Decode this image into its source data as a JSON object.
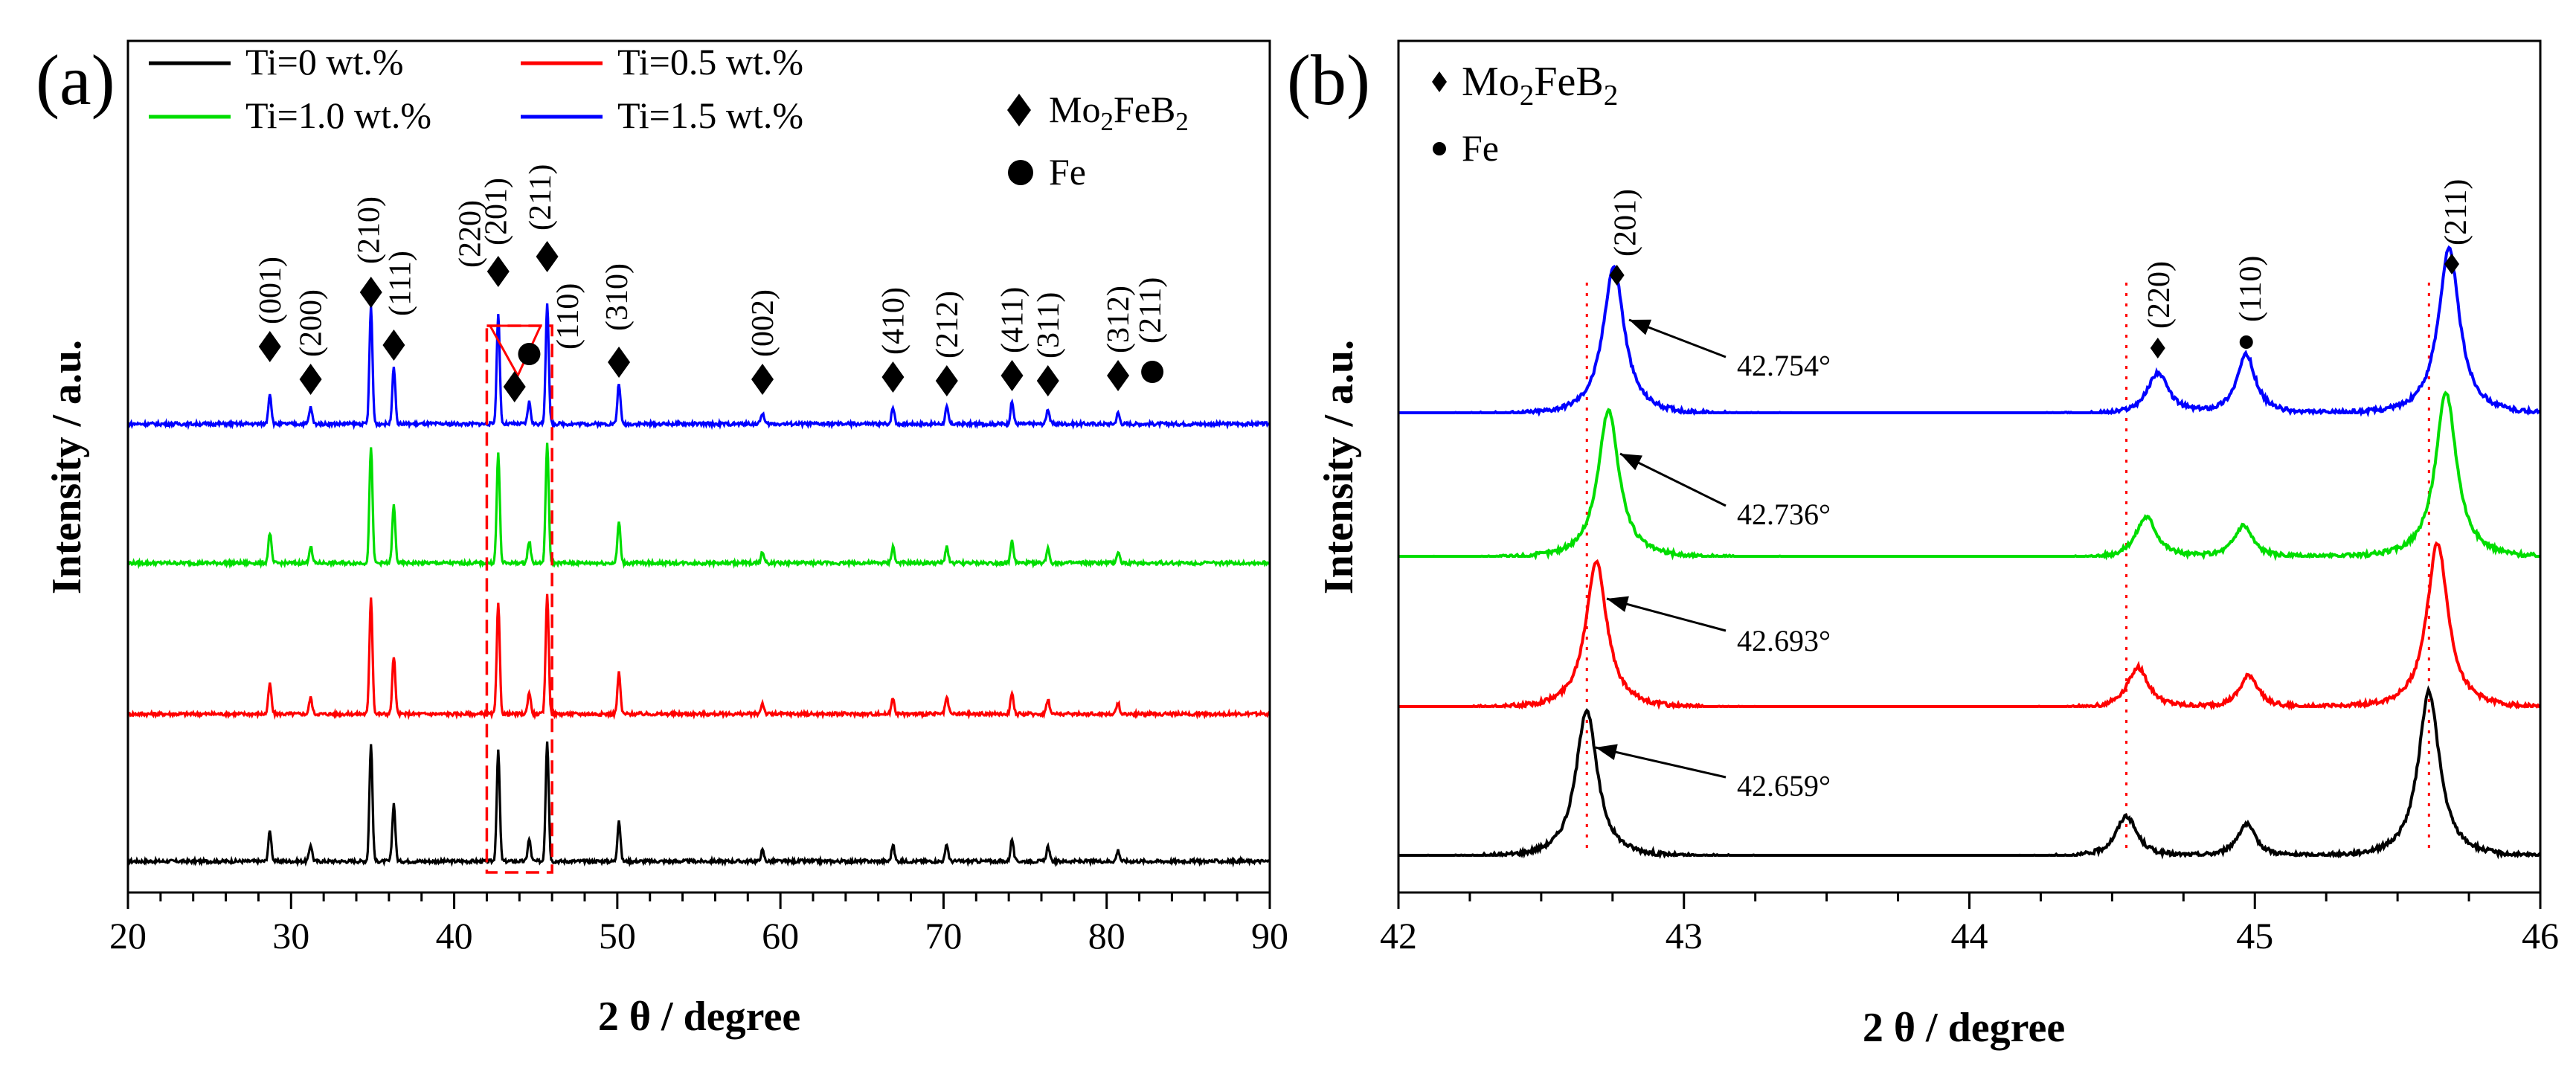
{
  "chart_data": [
    {
      "panel": "(a)",
      "type": "line",
      "xlabel": "2 θ  / degree",
      "ylabel": "Intensity / a.u.",
      "xlim": [
        20,
        90
      ],
      "xticks": [
        20,
        30,
        40,
        50,
        60,
        70,
        80,
        90
      ],
      "legend": [
        {
          "label": "Ti=0 wt.%",
          "color": "#000000"
        },
        {
          "label": "Ti=0.5 wt.%",
          "color": "#ff0000"
        },
        {
          "label": "Ti=1.0 wt.%",
          "color": "#00dd00"
        },
        {
          "label": "Ti=1.5 wt.%",
          "color": "#0000ff"
        }
      ],
      "phase_legend": [
        {
          "symbol": "diamond",
          "label": "Mo₂FeB₂"
        },
        {
          "symbol": "circle",
          "label": "Fe"
        }
      ],
      "series": [
        {
          "name": "Ti=0 wt.%",
          "color": "#000000",
          "offset": 0,
          "scale": 1.0
        },
        {
          "name": "Ti=0.5 wt.%",
          "color": "#ff0000",
          "offset": 1,
          "scale": 1.0
        },
        {
          "name": "Ti=1.0 wt.%",
          "color": "#00dd00",
          "offset": 2,
          "scale": 1.0
        },
        {
          "name": "Ti=1.5 wt.%",
          "color": "#0000ff",
          "offset": 3,
          "scale": 1.0
        }
      ],
      "peaks": [
        {
          "x": 28.7,
          "h": 0.22
        },
        {
          "x": 31.2,
          "h": 0.12
        },
        {
          "x": 34.9,
          "h": 0.85
        },
        {
          "x": 36.3,
          "h": 0.42
        },
        {
          "x": 42.7,
          "h": 0.8
        },
        {
          "x": 44.6,
          "h": 0.16
        },
        {
          "x": 45.7,
          "h": 0.88
        },
        {
          "x": 50.1,
          "h": 0.3
        },
        {
          "x": 58.9,
          "h": 0.08
        },
        {
          "x": 66.9,
          "h": 0.12
        },
        {
          "x": 70.2,
          "h": 0.12
        },
        {
          "x": 74.2,
          "h": 0.16
        },
        {
          "x": 76.4,
          "h": 0.11
        },
        {
          "x": 80.7,
          "h": 0.08
        }
      ],
      "reflections": [
        {
          "hkl": "(001)",
          "x": 28.7,
          "phase": "Mo2FeB2"
        },
        {
          "hkl": "(200)",
          "x": 31.2,
          "phase": "Mo2FeB2"
        },
        {
          "hkl": "(210)",
          "x": 34.9,
          "phase": "Mo2FeB2"
        },
        {
          "hkl": "(111)",
          "x": 36.3,
          "phase": "Mo2FeB2"
        },
        {
          "hkl": "(220)",
          "x": 43.7,
          "phase": "Mo2FeB2"
        },
        {
          "hkl": "(201)",
          "x": 42.7,
          "phase": "Mo2FeB2"
        },
        {
          "hkl": "(110)",
          "x": 44.6,
          "phase": "Fe"
        },
        {
          "hkl": "(211)",
          "x": 45.7,
          "phase": "Mo2FeB2"
        },
        {
          "hkl": "(310)",
          "x": 50.1,
          "phase": "Mo2FeB2"
        },
        {
          "hkl": "(002)",
          "x": 58.9,
          "phase": "Mo2FeB2"
        },
        {
          "hkl": "(410)",
          "x": 66.9,
          "phase": "Mo2FeB2"
        },
        {
          "hkl": "(212)",
          "x": 70.2,
          "phase": "Mo2FeB2"
        },
        {
          "hkl": "(411)",
          "x": 74.2,
          "phase": "Mo2FeB2"
        },
        {
          "hkl": "(311)",
          "x": 76.4,
          "phase": "Mo2FeB2"
        },
        {
          "hkl": "(312)",
          "x": 80.7,
          "phase": "Mo2FeB2"
        },
        {
          "hkl": "(211)",
          "x": 82.8,
          "phase": "Fe"
        }
      ],
      "highlight_box": {
        "xmin": 42,
        "xmax": 46
      }
    },
    {
      "panel": "(b)",
      "type": "line",
      "xlabel": "2 θ  / degree",
      "ylabel": "Intensity / a.u.",
      "xlim": [
        42,
        46
      ],
      "xticks": [
        42,
        43,
        44,
        45,
        46
      ],
      "phase_legend": [
        {
          "symbol": "diamond",
          "label": "Mo₂FeB₂"
        },
        {
          "symbol": "circle",
          "label": "Fe"
        }
      ],
      "series": [
        {
          "name": "Ti=0 wt.%",
          "color": "#000000",
          "offset": 0,
          "peak_201": 42.659,
          "peak_220": 44.55,
          "peak_110": 44.97,
          "peak_211": 45.61
        },
        {
          "name": "Ti=0.5 wt.%",
          "color": "#ff0000",
          "offset": 1,
          "peak_201": 42.693,
          "peak_220": 44.59,
          "peak_110": 44.98,
          "peak_211": 45.64
        },
        {
          "name": "Ti=1.0 wt.%",
          "color": "#00dd00",
          "offset": 2,
          "peak_201": 42.736,
          "peak_220": 44.62,
          "peak_110": 44.96,
          "peak_211": 45.67
        },
        {
          "name": "Ti=1.5 wt.%",
          "color": "#0000ff",
          "offset": 3,
          "peak_201": 42.754,
          "peak_220": 44.66,
          "peak_110": 44.97,
          "peak_211": 45.68
        }
      ],
      "annotations": [
        {
          "series": "Ti=1.5 wt.%",
          "text": "42.754°"
        },
        {
          "series": "Ti=1.0 wt.%",
          "text": "42.736°"
        },
        {
          "series": "Ti=0.5 wt.%",
          "text": "42.693°"
        },
        {
          "series": "Ti=0 wt.%",
          "text": "42.659°"
        }
      ],
      "reflections": [
        {
          "hkl": "(201)",
          "x": 42.754,
          "phase": "Mo2FeB2"
        },
        {
          "hkl": "(220)",
          "x": 44.66,
          "phase": "Mo2FeB2"
        },
        {
          "hkl": "(110)",
          "x": 44.97,
          "phase": "Fe"
        },
        {
          "hkl": "(211)",
          "x": 45.68,
          "phase": "Mo2FeB2"
        }
      ],
      "reference_lines": [
        42.66,
        44.55,
        45.61
      ]
    }
  ]
}
